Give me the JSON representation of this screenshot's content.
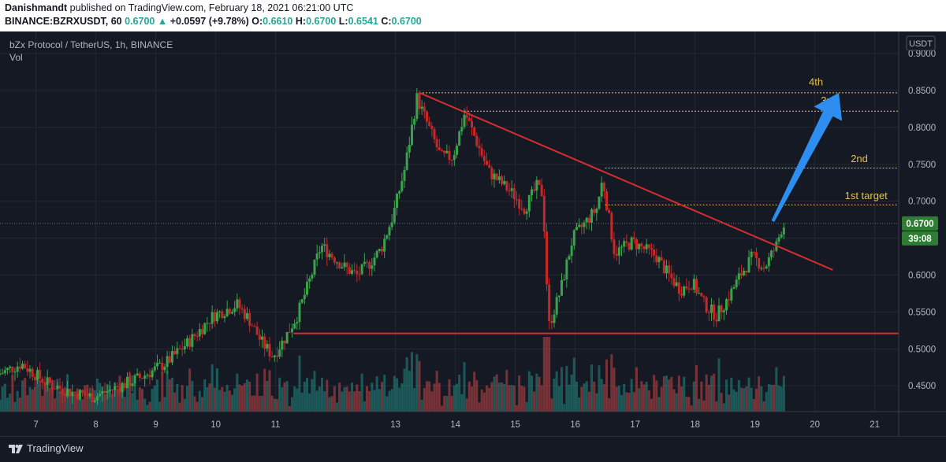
{
  "publication": {
    "author": "Danishmandt",
    "text": " published on TradingView.com, February 18, 2021 06:21:00 UTC"
  },
  "ohlc_line": {
    "symbol": "BINANCE:BZRXUSDT, 60",
    "last": "0.6700",
    "change_arrow": "▲",
    "change": "+0.0597 (+9.78%)",
    "o_label": "O:",
    "o": "0.6610",
    "h_label": "H:",
    "h": "0.6700",
    "l_label": "L:",
    "l": "0.6541",
    "c_label": "C:",
    "c": "0.6700"
  },
  "chart_header": {
    "title": "bZx Protocol / TetherUS, 1h, BINANCE",
    "vol_label": "Vol",
    "currency": "USDT"
  },
  "footer": {
    "brand": "TradingView"
  },
  "colors": {
    "background": "#151924",
    "grid": "#242836",
    "bull": "#26a69a",
    "candle_up": "#3aa34a",
    "candle_down": "#c62828",
    "trendline": "#d32f2f",
    "target_line": "#e5c04b",
    "arrow": "#2e8ef0",
    "label_bg": "#2e7d32",
    "axis_text": "#b2b5be"
  },
  "chart_data": {
    "type": "candlestick",
    "title": "bZx Protocol / TetherUS, 1h, BINANCE",
    "x_ticks": [
      "7",
      "8",
      "9",
      "10",
      "11",
      "13",
      "14",
      "15",
      "16",
      "17",
      "18",
      "19",
      "20",
      "21"
    ],
    "x_tick_pos": [
      6.6,
      7.6,
      8.6,
      9.6,
      10.6,
      12.6,
      13.6,
      14.6,
      15.6,
      16.6,
      17.6,
      18.6,
      19.6,
      20.6
    ],
    "xlim": [
      6,
      21
    ],
    "y_ticks": [
      "0.9000",
      "0.8500",
      "0.8000",
      "0.7500",
      "0.7000",
      "0.6500",
      "0.6000",
      "0.5500",
      "0.5000",
      "0.4500"
    ],
    "y_tick_values": [
      0.9,
      0.85,
      0.8,
      0.75,
      0.7,
      0.65,
      0.6,
      0.55,
      0.5,
      0.45
    ],
    "ylim": [
      0.415,
      0.93
    ],
    "grid": true,
    "price_path": [
      [
        6.0,
        0.465
      ],
      [
        6.4,
        0.48
      ],
      [
        6.8,
        0.455
      ],
      [
        7.2,
        0.442
      ],
      [
        7.6,
        0.435
      ],
      [
        8.0,
        0.448
      ],
      [
        8.4,
        0.462
      ],
      [
        8.8,
        0.48
      ],
      [
        9.2,
        0.51
      ],
      [
        9.6,
        0.545
      ],
      [
        10.0,
        0.56
      ],
      [
        10.2,
        0.54
      ],
      [
        10.4,
        0.51
      ],
      [
        10.6,
        0.49
      ],
      [
        10.8,
        0.515
      ],
      [
        11.0,
        0.545
      ],
      [
        11.2,
        0.59
      ],
      [
        11.4,
        0.64
      ],
      [
        11.6,
        0.625
      ],
      [
        11.8,
        0.61
      ],
      [
        12.0,
        0.6
      ],
      [
        12.2,
        0.615
      ],
      [
        12.4,
        0.635
      ],
      [
        12.6,
        0.68
      ],
      [
        12.8,
        0.745
      ],
      [
        13.0,
        0.84
      ],
      [
        13.2,
        0.8
      ],
      [
        13.4,
        0.76
      ],
      [
        13.6,
        0.76
      ],
      [
        13.8,
        0.82
      ],
      [
        14.0,
        0.78
      ],
      [
        14.2,
        0.74
      ],
      [
        14.4,
        0.725
      ],
      [
        14.6,
        0.71
      ],
      [
        14.8,
        0.69
      ],
      [
        15.0,
        0.72
      ],
      [
        15.1,
        0.71
      ],
      [
        15.2,
        0.53
      ],
      [
        15.4,
        0.58
      ],
      [
        15.6,
        0.65
      ],
      [
        15.8,
        0.67
      ],
      [
        16.0,
        0.69
      ],
      [
        16.1,
        0.73
      ],
      [
        16.3,
        0.63
      ],
      [
        16.6,
        0.645
      ],
      [
        17.0,
        0.625
      ],
      [
        17.2,
        0.6
      ],
      [
        17.4,
        0.58
      ],
      [
        17.6,
        0.59
      ],
      [
        17.8,
        0.56
      ],
      [
        18.0,
        0.545
      ],
      [
        18.2,
        0.57
      ],
      [
        18.4,
        0.6
      ],
      [
        18.6,
        0.625
      ],
      [
        18.8,
        0.61
      ],
      [
        19.0,
        0.64
      ],
      [
        19.1,
        0.667
      ]
    ],
    "notable_levels": {
      "last_price": 0.67,
      "support": 0.521,
      "high": 0.847
    },
    "trendline": {
      "from": [
        13.0,
        0.847
      ],
      "to": [
        19.9,
        0.607
      ]
    },
    "support_line": {
      "from": [
        10.9,
        0.521
      ],
      "to": [
        21.0,
        0.521
      ]
    },
    "targets": [
      {
        "label": "1st target",
        "price": 0.695,
        "from_x": 16.1
      },
      {
        "label": "2nd",
        "price": 0.745,
        "from_x": 16.1
      },
      {
        "label": "3rd",
        "price": 0.822,
        "from_x": 13.75
      },
      {
        "label": "4th",
        "price": 0.847,
        "from_x": 13.0
      }
    ],
    "target_label_pos": [
      {
        "x": 20.1,
        "y": 0.703
      },
      {
        "x": 20.2,
        "y": 0.753
      },
      {
        "x": 19.7,
        "y": 0.832
      },
      {
        "x": 19.5,
        "y": 0.857
      }
    ],
    "last_price_label": "0.6700",
    "countdown_label": "39:08"
  }
}
